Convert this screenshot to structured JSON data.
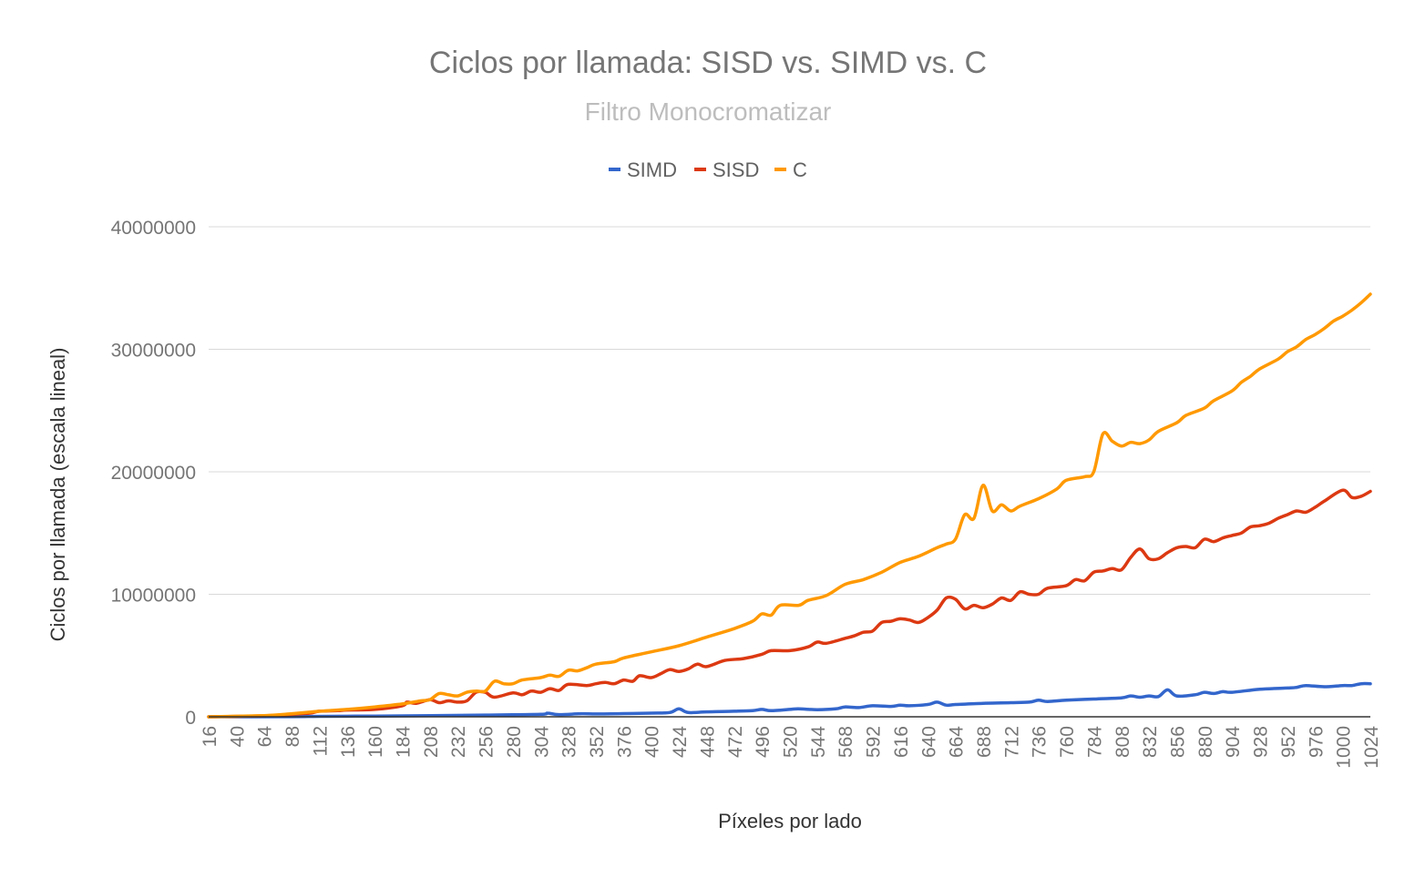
{
  "chart_data": {
    "type": "line",
    "title": "Ciclos por llamada: SISD vs. SIMD vs. C",
    "subtitle": "Filtro Monocromatizar",
    "xlabel": "Píxeles por lado",
    "ylabel": "Ciclos por llamada (escala lineal)",
    "ylim": [
      0,
      40000000
    ],
    "xlim": [
      16,
      1024
    ],
    "yticks": [
      "0",
      "10000000",
      "20000000",
      "30000000",
      "40000000"
    ],
    "xticks": [
      "16",
      "40",
      "64",
      "88",
      "112",
      "136",
      "160",
      "184",
      "208",
      "232",
      "256",
      "280",
      "304",
      "328",
      "352",
      "376",
      "400",
      "424",
      "448",
      "472",
      "496",
      "520",
      "544",
      "568",
      "592",
      "616",
      "640",
      "664",
      "688",
      "712",
      "736",
      "760",
      "784",
      "808",
      "832",
      "856",
      "880",
      "904",
      "928",
      "952",
      "976",
      "1000",
      "1024"
    ],
    "grid": true,
    "legend_position": "top",
    "series": [
      {
        "name": "SIMD",
        "color": "#3366cc",
        "points": [
          [
            16,
            0
          ],
          [
            88,
            10000
          ],
          [
            112,
            40000
          ],
          [
            160,
            60000
          ],
          [
            208,
            90000
          ],
          [
            256,
            140000
          ],
          [
            304,
            200000
          ],
          [
            310,
            300000
          ],
          [
            320,
            180000
          ],
          [
            340,
            250000
          ],
          [
            352,
            230000
          ],
          [
            376,
            260000
          ],
          [
            400,
            300000
          ],
          [
            416,
            350000
          ],
          [
            424,
            650000
          ],
          [
            432,
            350000
          ],
          [
            448,
            400000
          ],
          [
            472,
            450000
          ],
          [
            488,
            500000
          ],
          [
            496,
            600000
          ],
          [
            504,
            500000
          ],
          [
            520,
            600000
          ],
          [
            528,
            650000
          ],
          [
            544,
            580000
          ],
          [
            560,
            650000
          ],
          [
            568,
            800000
          ],
          [
            580,
            750000
          ],
          [
            592,
            900000
          ],
          [
            608,
            850000
          ],
          [
            616,
            950000
          ],
          [
            624,
            900000
          ],
          [
            640,
            1000000
          ],
          [
            648,
            1200000
          ],
          [
            656,
            950000
          ],
          [
            664,
            1000000
          ],
          [
            688,
            1100000
          ],
          [
            712,
            1150000
          ],
          [
            728,
            1200000
          ],
          [
            736,
            1350000
          ],
          [
            744,
            1250000
          ],
          [
            760,
            1350000
          ],
          [
            784,
            1450000
          ],
          [
            808,
            1550000
          ],
          [
            816,
            1700000
          ],
          [
            824,
            1600000
          ],
          [
            832,
            1700000
          ],
          [
            840,
            1650000
          ],
          [
            848,
            2200000
          ],
          [
            856,
            1700000
          ],
          [
            872,
            1800000
          ],
          [
            880,
            2000000
          ],
          [
            888,
            1900000
          ],
          [
            896,
            2050000
          ],
          [
            904,
            2000000
          ],
          [
            928,
            2250000
          ],
          [
            952,
            2350000
          ],
          [
            960,
            2400000
          ],
          [
            968,
            2550000
          ],
          [
            984,
            2450000
          ],
          [
            1000,
            2550000
          ],
          [
            1008,
            2550000
          ],
          [
            1016,
            2700000
          ],
          [
            1024,
            2700000
          ]
        ]
      },
      {
        "name": "SISD",
        "color": "#dc3912",
        "points": [
          [
            16,
            0
          ],
          [
            64,
            80000
          ],
          [
            88,
            200000
          ],
          [
            104,
            300000
          ],
          [
            112,
            450000
          ],
          [
            128,
            500000
          ],
          [
            136,
            550000
          ],
          [
            160,
            600000
          ],
          [
            184,
            900000
          ],
          [
            188,
            1200000
          ],
          [
            196,
            1100000
          ],
          [
            208,
            1400000
          ],
          [
            216,
            1150000
          ],
          [
            224,
            1300000
          ],
          [
            232,
            1200000
          ],
          [
            240,
            1300000
          ],
          [
            248,
            2000000
          ],
          [
            256,
            2000000
          ],
          [
            264,
            1600000
          ],
          [
            280,
            1950000
          ],
          [
            288,
            1800000
          ],
          [
            296,
            2100000
          ],
          [
            304,
            2000000
          ],
          [
            312,
            2300000
          ],
          [
            320,
            2150000
          ],
          [
            328,
            2650000
          ],
          [
            344,
            2550000
          ],
          [
            352,
            2700000
          ],
          [
            360,
            2800000
          ],
          [
            368,
            2700000
          ],
          [
            376,
            3000000
          ],
          [
            384,
            2900000
          ],
          [
            390,
            3350000
          ],
          [
            400,
            3200000
          ],
          [
            408,
            3500000
          ],
          [
            416,
            3850000
          ],
          [
            424,
            3700000
          ],
          [
            432,
            3900000
          ],
          [
            440,
            4300000
          ],
          [
            448,
            4100000
          ],
          [
            464,
            4600000
          ],
          [
            480,
            4750000
          ],
          [
            496,
            5100000
          ],
          [
            504,
            5400000
          ],
          [
            520,
            5400000
          ],
          [
            536,
            5700000
          ],
          [
            544,
            6100000
          ],
          [
            552,
            6000000
          ],
          [
            568,
            6400000
          ],
          [
            576,
            6600000
          ],
          [
            584,
            6900000
          ],
          [
            592,
            7000000
          ],
          [
            600,
            7700000
          ],
          [
            608,
            7800000
          ],
          [
            616,
            8000000
          ],
          [
            624,
            7900000
          ],
          [
            632,
            7700000
          ],
          [
            640,
            8100000
          ],
          [
            648,
            8700000
          ],
          [
            656,
            9700000
          ],
          [
            664,
            9600000
          ],
          [
            672,
            8800000
          ],
          [
            680,
            9100000
          ],
          [
            688,
            8900000
          ],
          [
            696,
            9200000
          ],
          [
            704,
            9700000
          ],
          [
            712,
            9500000
          ],
          [
            720,
            10200000
          ],
          [
            728,
            10000000
          ],
          [
            736,
            10000000
          ],
          [
            744,
            10500000
          ],
          [
            760,
            10700000
          ],
          [
            768,
            11200000
          ],
          [
            776,
            11100000
          ],
          [
            784,
            11800000
          ],
          [
            792,
            11900000
          ],
          [
            800,
            12100000
          ],
          [
            808,
            12000000
          ],
          [
            816,
            13000000
          ],
          [
            824,
            13700000
          ],
          [
            832,
            12900000
          ],
          [
            840,
            12900000
          ],
          [
            848,
            13400000
          ],
          [
            856,
            13800000
          ],
          [
            864,
            13900000
          ],
          [
            872,
            13800000
          ],
          [
            880,
            14500000
          ],
          [
            888,
            14300000
          ],
          [
            896,
            14600000
          ],
          [
            904,
            14800000
          ],
          [
            912,
            15000000
          ],
          [
            920,
            15500000
          ],
          [
            928,
            15600000
          ],
          [
            936,
            15800000
          ],
          [
            944,
            16200000
          ],
          [
            952,
            16500000
          ],
          [
            960,
            16800000
          ],
          [
            968,
            16700000
          ],
          [
            976,
            17100000
          ],
          [
            984,
            17600000
          ],
          [
            1000,
            18500000
          ],
          [
            1008,
            17900000
          ],
          [
            1016,
            18000000
          ],
          [
            1024,
            18400000
          ]
        ]
      },
      {
        "name": "C",
        "color": "#ff9900",
        "points": [
          [
            16,
            0
          ],
          [
            64,
            100000
          ],
          [
            88,
            250000
          ],
          [
            112,
            450000
          ],
          [
            136,
            600000
          ],
          [
            160,
            800000
          ],
          [
            184,
            1050000
          ],
          [
            200,
            1300000
          ],
          [
            208,
            1400000
          ],
          [
            216,
            1900000
          ],
          [
            224,
            1800000
          ],
          [
            232,
            1700000
          ],
          [
            240,
            2000000
          ],
          [
            248,
            2100000
          ],
          [
            256,
            2100000
          ],
          [
            264,
            2900000
          ],
          [
            272,
            2700000
          ],
          [
            280,
            2700000
          ],
          [
            288,
            3000000
          ],
          [
            304,
            3200000
          ],
          [
            312,
            3400000
          ],
          [
            320,
            3300000
          ],
          [
            328,
            3800000
          ],
          [
            336,
            3750000
          ],
          [
            344,
            4000000
          ],
          [
            352,
            4300000
          ],
          [
            368,
            4500000
          ],
          [
            376,
            4800000
          ],
          [
            400,
            5300000
          ],
          [
            424,
            5800000
          ],
          [
            448,
            6500000
          ],
          [
            472,
            7200000
          ],
          [
            488,
            7800000
          ],
          [
            496,
            8400000
          ],
          [
            504,
            8300000
          ],
          [
            512,
            9100000
          ],
          [
            528,
            9100000
          ],
          [
            536,
            9500000
          ],
          [
            552,
            9900000
          ],
          [
            568,
            10800000
          ],
          [
            584,
            11200000
          ],
          [
            600,
            11800000
          ],
          [
            616,
            12600000
          ],
          [
            632,
            13100000
          ],
          [
            648,
            13800000
          ],
          [
            656,
            14100000
          ],
          [
            664,
            14500000
          ],
          [
            672,
            16500000
          ],
          [
            680,
            16200000
          ],
          [
            688,
            18900000
          ],
          [
            696,
            16800000
          ],
          [
            704,
            17300000
          ],
          [
            712,
            16800000
          ],
          [
            720,
            17200000
          ],
          [
            736,
            17800000
          ],
          [
            752,
            18600000
          ],
          [
            760,
            19300000
          ],
          [
            776,
            19600000
          ],
          [
            784,
            20000000
          ],
          [
            792,
            23100000
          ],
          [
            800,
            22500000
          ],
          [
            808,
            22100000
          ],
          [
            816,
            22400000
          ],
          [
            824,
            22300000
          ],
          [
            832,
            22600000
          ],
          [
            840,
            23300000
          ],
          [
            856,
            24000000
          ],
          [
            864,
            24600000
          ],
          [
            880,
            25200000
          ],
          [
            888,
            25800000
          ],
          [
            904,
            26600000
          ],
          [
            912,
            27300000
          ],
          [
            920,
            27800000
          ],
          [
            928,
            28400000
          ],
          [
            944,
            29200000
          ],
          [
            952,
            29800000
          ],
          [
            960,
            30200000
          ],
          [
            968,
            30800000
          ],
          [
            976,
            31200000
          ],
          [
            984,
            31700000
          ],
          [
            992,
            32300000
          ],
          [
            1000,
            32700000
          ],
          [
            1008,
            33200000
          ],
          [
            1016,
            33800000
          ],
          [
            1024,
            34500000
          ]
        ]
      }
    ]
  }
}
